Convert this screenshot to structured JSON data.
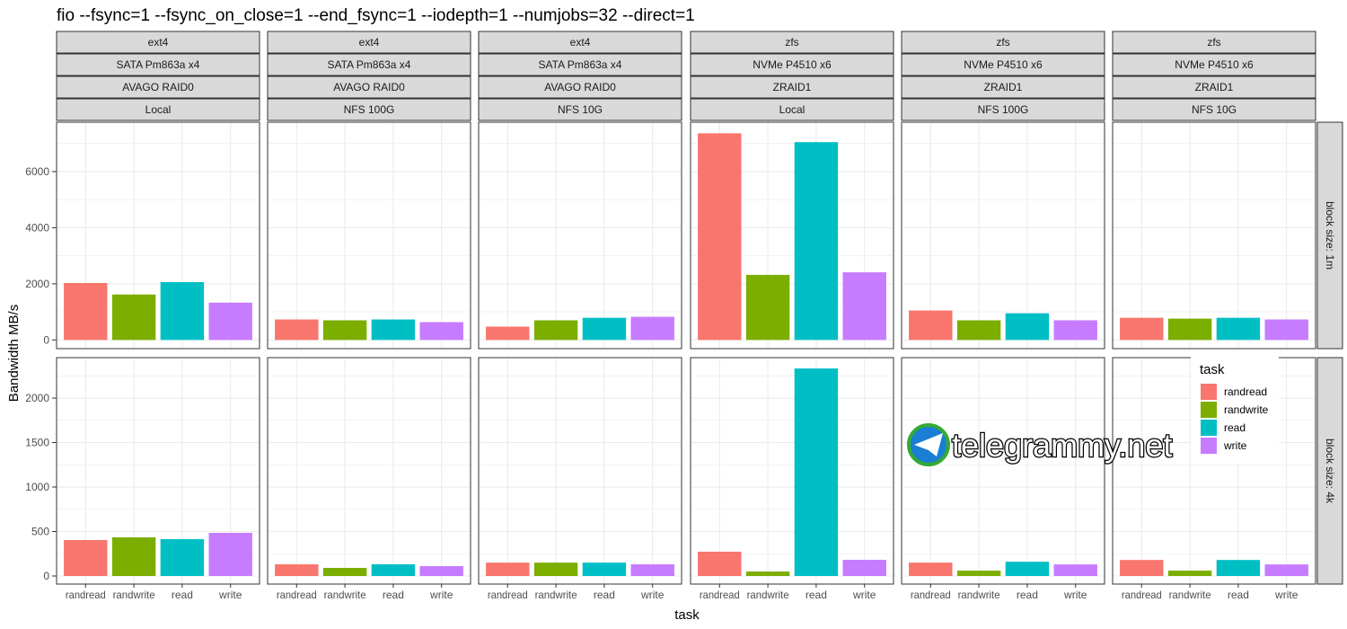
{
  "chart_data": {
    "type": "bar",
    "title": "fio --fsync=1 --fsync_on_close=1 --end_fsync=1 --iodepth=1 --numjobs=32 --direct=1",
    "xlabel": "task",
    "ylabel": "Bandwidth MB/s",
    "categories": [
      "randread",
      "randwrite",
      "read",
      "write"
    ],
    "colors": {
      "randread": "#F8766D",
      "randwrite": "#7CAE00",
      "read": "#00BFC4",
      "write": "#C77CFF"
    },
    "legend": {
      "title": "task",
      "position": "right-inside",
      "entries": [
        "randread",
        "randwrite",
        "read",
        "write"
      ]
    },
    "grid": true,
    "columns": [
      {
        "strips": [
          "ext4",
          "SATA Pm863a x4",
          "AVAGO RAID0",
          "Local"
        ]
      },
      {
        "strips": [
          "ext4",
          "SATA Pm863a x4",
          "AVAGO RAID0",
          "NFS 100G"
        ]
      },
      {
        "strips": [
          "ext4",
          "SATA Pm863a x4",
          "AVAGO RAID0",
          "NFS 10G"
        ]
      },
      {
        "strips": [
          "zfs",
          "NVMe P4510 x6",
          "ZRAID1",
          "Local"
        ]
      },
      {
        "strips": [
          "zfs",
          "NVMe P4510 x6",
          "ZRAID1",
          "NFS 100G"
        ]
      },
      {
        "strips": [
          "zfs",
          "NVMe P4510 x6",
          "ZRAID1",
          "NFS 10G"
        ]
      }
    ],
    "rows": [
      {
        "strip": "block size: 1m",
        "ylim": [
          -310,
          7760
        ],
        "yticks": [
          0,
          2000,
          4000,
          6000
        ],
        "values": [
          [
            2030,
            1620,
            2060,
            1330
          ],
          [
            730,
            700,
            730,
            635
          ],
          [
            475,
            700,
            790,
            825
          ],
          [
            7365,
            2320,
            7050,
            2410
          ],
          [
            1050,
            700,
            950,
            700
          ],
          [
            790,
            760,
            790,
            730
          ]
        ]
      },
      {
        "strip": "block size: 4k",
        "ylim": [
          -91,
          2455
        ],
        "yticks": [
          0,
          500,
          1000,
          1500,
          2000
        ],
        "values": [
          [
            404,
            434,
            414,
            485
          ],
          [
            131,
            91,
            131,
            111
          ],
          [
            150,
            150,
            150,
            131
          ],
          [
            273,
            50,
            2333,
            182
          ],
          [
            150,
            60,
            160,
            130
          ],
          [
            180,
            60,
            180,
            130
          ]
        ]
      }
    ]
  },
  "watermark": "telegrammy.net"
}
